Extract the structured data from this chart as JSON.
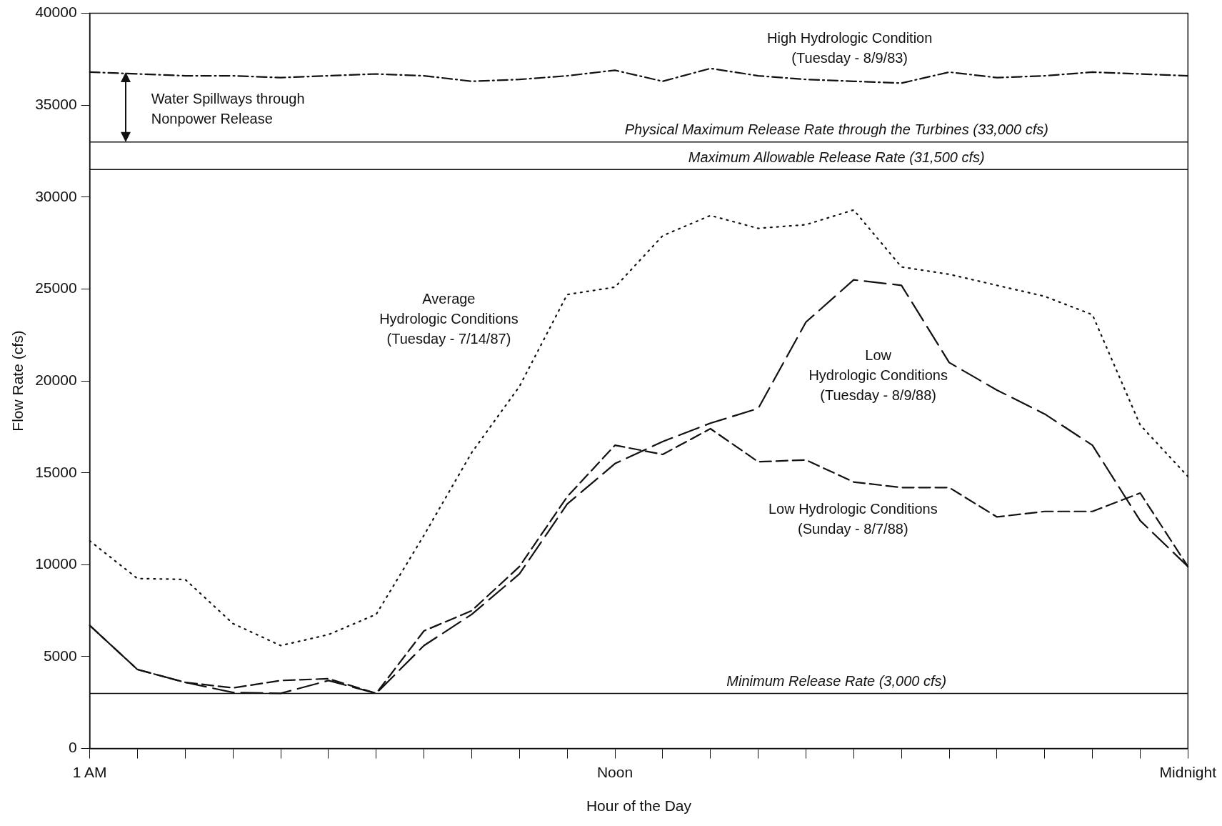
{
  "chart_data": {
    "type": "line",
    "xlabel": "Hour of the Day",
    "ylabel": "Flow Rate (cfs)",
    "categories": [
      "1 AM",
      null,
      null,
      null,
      null,
      null,
      null,
      null,
      null,
      null,
      null,
      "Noon",
      null,
      null,
      null,
      null,
      null,
      null,
      null,
      null,
      null,
      null,
      null,
      "Midnight"
    ],
    "series": [
      {
        "name": "High Hydrologic Condition\n(Tuesday - 8/9/83)",
        "color": "#111111",
        "line_style": "dashdot",
        "values": [
          36800,
          36700,
          36600,
          36600,
          36500,
          36600,
          36700,
          36600,
          36300,
          36400,
          36600,
          36900,
          36300,
          37000,
          36600,
          36400,
          36300,
          36200,
          36800,
          36500,
          36600,
          36800,
          36700,
          36600
        ]
      },
      {
        "name": "Average\nHydrologic Conditions\n(Tuesday - 7/14/87)",
        "color": "#111111",
        "line_style": "dotted",
        "values": [
          11300,
          9250,
          9200,
          6800,
          5600,
          6200,
          7300,
          11600,
          16100,
          19700,
          24700,
          25100,
          27900,
          29000,
          28300,
          28500,
          29300,
          26200,
          25800,
          25200,
          24600,
          23600,
          17600,
          14800
        ]
      },
      {
        "name": "Low\nHydrologic Conditions\n(Tuesday - 8/9/88)",
        "color": "#111111",
        "line_style": "longdash",
        "values": [
          6700,
          4300,
          3600,
          3050,
          3000,
          3700,
          3000,
          5600,
          7300,
          9500,
          13300,
          15500,
          16700,
          17700,
          18500,
          23200,
          25500,
          25200,
          21000,
          19500,
          18200,
          16500,
          12400,
          9900
        ]
      },
      {
        "name": "Low Hydrologic Conditions\n(Sunday - 8/7/88)",
        "color": "#111111",
        "line_style": "dashed",
        "values": [
          6700,
          4300,
          3600,
          3300,
          3700,
          3800,
          3000,
          6400,
          7500,
          9900,
          13700,
          16500,
          16000,
          17400,
          15600,
          15700,
          14500,
          14200,
          14200,
          12600,
          12900,
          12900,
          13900,
          9900
        ]
      }
    ],
    "ylim": [
      0,
      40000
    ],
    "yticks": [
      0,
      5000,
      10000,
      15000,
      20000,
      25000,
      30000,
      35000,
      40000
    ],
    "ref_lines": [
      {
        "axis": "y",
        "value": 33000,
        "label": "Physical Maximum Release Rate through the Turbines (33,000 cfs)"
      },
      {
        "axis": "y",
        "value": 31500,
        "label": "Maximum Allowable Release Rate (31,500 cfs)"
      },
      {
        "axis": "y",
        "value": 3000,
        "label": "Minimum Release Rate (3,000 cfs)"
      }
    ],
    "annotations": [
      "Water Spillways through\nNonpower Release"
    ],
    "grid": false,
    "legend": false,
    "marker": "none"
  }
}
